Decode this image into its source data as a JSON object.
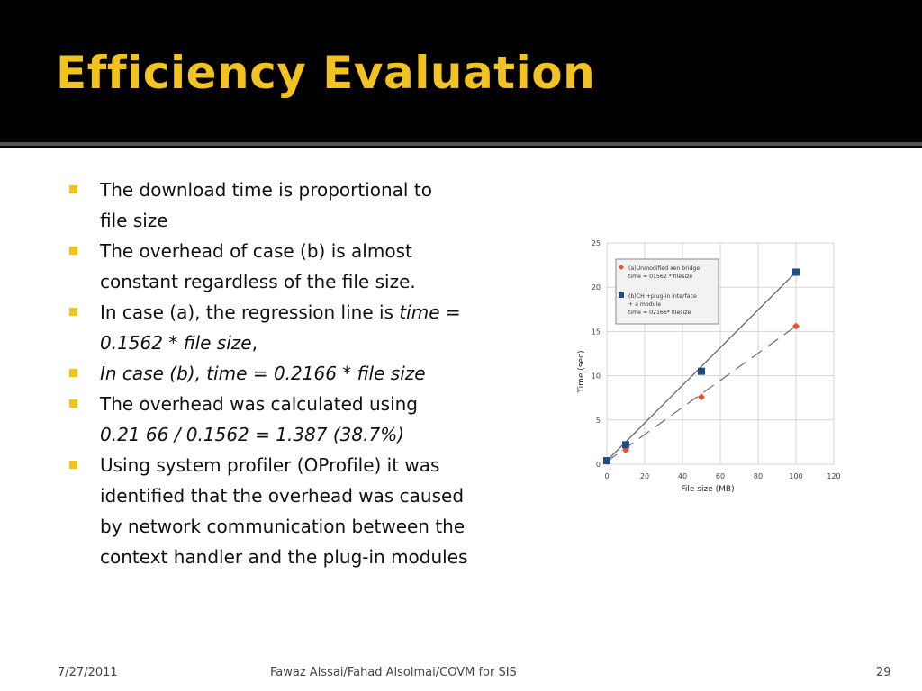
{
  "slide": {
    "title": "Efficiency Evaluation",
    "bullets": [
      {
        "lines": [
          [
            {
              "t": "The download time is proportional to",
              "i": false
            }
          ],
          [
            {
              "t": "file size",
              "i": false
            }
          ]
        ]
      },
      {
        "lines": [
          [
            {
              "t": "The overhead of case (b) is almost",
              "i": false
            }
          ],
          [
            {
              "t": "constant regardless of the file size.",
              "i": false
            }
          ]
        ]
      },
      {
        "lines": [
          [
            {
              "t": "In case (a), the regression line is ",
              "i": false
            },
            {
              "t": "time",
              "i": true
            },
            {
              "t": " =",
              "i": false
            }
          ],
          [
            {
              "t": "0.1562 * file size",
              "i": true
            },
            {
              "t": ",",
              "i": false
            }
          ]
        ]
      },
      {
        "lines": [
          [
            {
              "t": "In case (b), time = 0.2166 * file size",
              "i": true
            }
          ]
        ]
      },
      {
        "lines": [
          [
            {
              "t": "The overhead was calculated using",
              "i": false
            }
          ],
          [
            {
              "t": "0.21 66 / 0.1562 = 1.387 (38.7%)",
              "i": true
            }
          ]
        ]
      },
      {
        "lines": [
          [
            {
              "t": "Using system profiler (OProfile) it was",
              "i": false
            }
          ],
          [
            {
              "t": "identified that the overhead was caused",
              "i": false
            }
          ],
          [
            {
              "t": "by network communication between the",
              "i": false
            }
          ],
          [
            {
              "t": "context handler and the plug-in modules",
              "i": false
            }
          ]
        ]
      }
    ]
  },
  "footer": {
    "date": "7/27/2011",
    "authors": "Fawaz Alssai/Fahad Alsolmai/COVM for SIS",
    "page": "29"
  },
  "colors": {
    "title": "#f2c31e",
    "bullet": "#f2c31e",
    "series_a": "#e8542a",
    "series_b": "#1f4e84"
  },
  "chart_data": {
    "type": "scatter",
    "xlabel": "File size (MB)",
    "ylabel": "Time (sec)",
    "xlim": [
      0,
      120
    ],
    "ylim": [
      0,
      25
    ],
    "xticks": [
      0,
      20,
      40,
      60,
      80,
      100,
      120
    ],
    "yticks": [
      0,
      5,
      10,
      15,
      20,
      25
    ],
    "grid": true,
    "legend": {
      "placement": "top-left",
      "entries": [
        {
          "series": 0,
          "lines": [
            "(a)Unmodified xen bridge",
            "time = 01562 * filesize"
          ]
        },
        {
          "series": 1,
          "lines": [
            "(b)CH +plug-in interface",
            "+ a module",
            "time = 02166* filesize"
          ]
        }
      ]
    },
    "series": [
      {
        "x": [
          0,
          10,
          50,
          100
        ],
        "values": [
          0.3,
          1.6,
          7.6,
          15.6
        ],
        "marker": "diamond",
        "line": "dashed",
        "fit_slope": 0.1562
      },
      {
        "x": [
          0,
          10,
          50,
          100
        ],
        "values": [
          0.4,
          2.2,
          10.5,
          21.7
        ],
        "marker": "square",
        "line": "solid",
        "fit_slope": 0.2166
      }
    ]
  }
}
